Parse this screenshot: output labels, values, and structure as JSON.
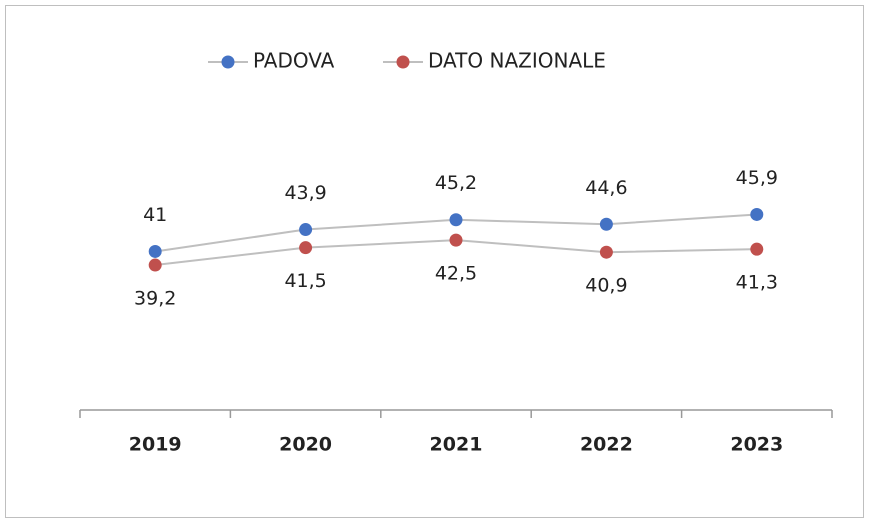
{
  "chart_data": {
    "type": "line",
    "categories": [
      "2019",
      "2020",
      "2021",
      "2022",
      "2023"
    ],
    "series": [
      {
        "name": "PADOVA",
        "color": "#4472c4",
        "values": [
          41,
          43.9,
          45.2,
          44.6,
          45.9
        ],
        "value_labels": [
          "41",
          "43,9",
          "45,2",
          "44,6",
          "45,9"
        ]
      },
      {
        "name": "DATO NAZIONALE",
        "color": "#c0504d",
        "values": [
          39.2,
          41.5,
          42.5,
          40.9,
          41.3
        ],
        "value_labels": [
          "39,2",
          "41,5",
          "42,5",
          "40,9",
          "41,3"
        ]
      }
    ],
    "ylim": [
      20,
      60
    ],
    "line_color": "#bfbfbf",
    "legend": "top"
  }
}
